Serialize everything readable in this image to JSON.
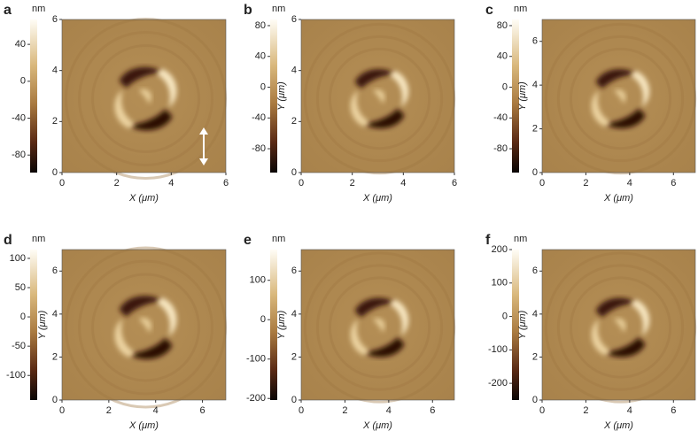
{
  "chart_data": [
    {
      "type": "image",
      "panel_label": "a",
      "colorbar_label": "nm",
      "clim": [
        -99,
        67
      ],
      "cticks": [
        40,
        0,
        -40,
        -80
      ],
      "xlim": [
        0,
        6
      ],
      "ylim": [
        0,
        6
      ],
      "xticks": [
        0,
        2,
        4,
        6
      ],
      "yticks": [
        0,
        2,
        4,
        6
      ],
      "x_label": "X (μm)"
    },
    {
      "type": "image",
      "panel_label": "b",
      "colorbar_label": "nm",
      "clim": [
        -111,
        88
      ],
      "cticks": [
        80,
        40,
        0,
        -40,
        -80
      ],
      "xlim": [
        0,
        6
      ],
      "ylim": [
        0,
        6
      ],
      "xticks": [
        0,
        2,
        4,
        6
      ],
      "yticks": [
        0,
        2,
        4,
        6
      ],
      "x_label": "X (μm)",
      "y_label": "Y (μm)"
    },
    {
      "type": "image",
      "panel_label": "c",
      "colorbar_label": "nm",
      "clim": [
        -111,
        88
      ],
      "cticks": [
        80,
        40,
        0,
        -40,
        -80
      ],
      "xlim": [
        0,
        7
      ],
      "ylim": [
        0,
        7
      ],
      "xticks": [
        0,
        2,
        4,
        6
      ],
      "yticks": [
        0,
        2,
        4,
        6
      ],
      "x_label": "X (μm)",
      "y_label": "Y (μm)"
    },
    {
      "type": "image",
      "panel_label": "d",
      "colorbar_label": "nm",
      "clim": [
        -142,
        115
      ],
      "cticks": [
        100,
        50,
        0,
        -50,
        -100
      ],
      "xlim": [
        0,
        7
      ],
      "ylim": [
        0,
        7
      ],
      "xticks": [
        0,
        2,
        4,
        6
      ],
      "yticks": [
        0,
        2,
        4,
        6
      ],
      "x_label": "X (μm)",
      "y_label": "Y (μm)"
    },
    {
      "type": "image",
      "panel_label": "e",
      "colorbar_label": "nm",
      "clim": [
        -204,
        178
      ],
      "cticks": [
        100,
        0,
        -100,
        -200
      ],
      "xlim": [
        0,
        7
      ],
      "ylim": [
        0,
        7
      ],
      "xticks": [
        0,
        2,
        4,
        6
      ],
      "yticks": [
        0,
        2,
        4,
        6
      ],
      "x_label": "X (μm)",
      "y_label": "Y (μm)"
    },
    {
      "type": "image",
      "panel_label": "f",
      "colorbar_label": "nm",
      "clim": [
        -250,
        200
      ],
      "cticks": [
        200,
        100,
        0,
        -100,
        -200
      ],
      "xlim": [
        0,
        7
      ],
      "ylim": [
        0,
        7
      ],
      "xticks": [
        0,
        2,
        4,
        6
      ],
      "yticks": [
        0,
        2,
        4,
        6
      ],
      "x_label": "X (μm)",
      "y_label": "Y (μm)"
    }
  ]
}
